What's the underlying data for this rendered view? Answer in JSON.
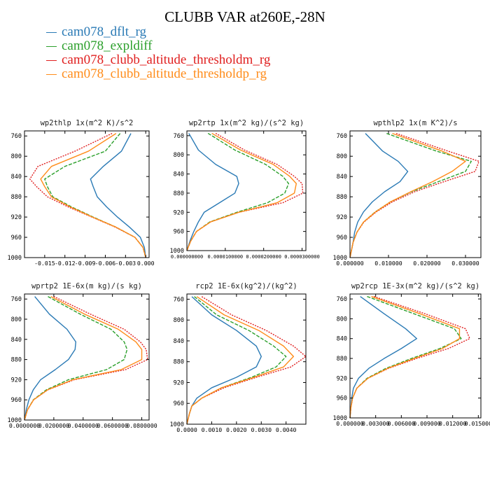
{
  "figure": {
    "title": "CLUBB VAR at260E,-28N"
  },
  "legend": {
    "items": [
      {
        "label": "cam078_dflt_rg",
        "color": "#2a7ab5",
        "dash": "solid"
      },
      {
        "label": "cam078_expldiff",
        "color": "#2ca02c",
        "dash": "dashed"
      },
      {
        "label": "cam078_clubb_altitude_thresholdm_rg",
        "color": "#e02020",
        "dash": "dotted"
      },
      {
        "label": "cam078_clubb_altitude_thresholdp_rg",
        "color": "#ff8c1a",
        "dash": "solid"
      }
    ]
  },
  "chart_data": [
    {
      "type": "line",
      "title": "wp2thlp  1x(m^2 K)/s^2",
      "y_axis": "pressure",
      "y_inverted": true,
      "ylim": [
        750,
        1000
      ],
      "yticks": [
        760,
        800,
        840,
        880,
        920,
        960,
        1000
      ],
      "xlim": [
        -0.018,
        0.0005
      ],
      "xticks": [
        -0.015,
        -0.012,
        -0.009,
        -0.006,
        -0.003,
        0.0
      ],
      "xtick_labels": [
        "-0.015",
        "-0.012",
        "-0.009",
        "-0.006",
        "-0.003",
        "0.000"
      ],
      "y": [
        755,
        790,
        820,
        845,
        860,
        880,
        900,
        920,
        940,
        960,
        980,
        1000
      ],
      "series": [
        {
          "name": "cam078_dflt_rg",
          "x": [
            -0.0022,
            -0.0036,
            -0.0063,
            -0.0082,
            -0.0078,
            -0.0072,
            -0.0058,
            -0.0042,
            -0.0024,
            -0.0008,
            -0.0002,
            0.0
          ]
        },
        {
          "name": "cam078_expldiff",
          "x": [
            -0.0038,
            -0.006,
            -0.012,
            -0.015,
            -0.0146,
            -0.0138,
            -0.011,
            -0.0078,
            -0.0044,
            -0.0016,
            -0.0004,
            0.0
          ]
        },
        {
          "name": "cam078_clubb_altitude_thresholdm_rg",
          "x": [
            -0.005,
            -0.0105,
            -0.016,
            -0.0172,
            -0.0162,
            -0.0146,
            -0.0115,
            -0.008,
            -0.0045,
            -0.0016,
            -0.0004,
            0.0
          ]
        },
        {
          "name": "cam078_clubb_altitude_thresholdp_rg",
          "x": [
            -0.0044,
            -0.0085,
            -0.014,
            -0.0156,
            -0.015,
            -0.014,
            -0.0112,
            -0.0079,
            -0.0044,
            -0.0016,
            -0.0004,
            0.0
          ]
        }
      ]
    },
    {
      "type": "line",
      "title": "wp2rtp  1x(m^2 kg)/(s^2 kg)",
      "y_axis": "pressure",
      "y_inverted": true,
      "ylim": [
        750,
        1000
      ],
      "yticks": [
        760,
        800,
        840,
        880,
        920,
        960,
        1000
      ],
      "xlim": [
        0,
        3.1e-05
      ],
      "xticks": [
        0,
        1e-05,
        2e-05,
        3e-05
      ],
      "xtick_labels": [
        "0.000000000",
        "0.0000100000",
        "0.0000200000",
        "0.0000300000"
      ],
      "y": [
        755,
        790,
        820,
        845,
        860,
        880,
        900,
        920,
        940,
        960,
        980,
        1000
      ],
      "series": [
        {
          "name": "cam078_dflt_rg",
          "x": [
            5e-07,
            3e-06,
            7.5e-06,
            1.3e-05,
            1.35e-05,
            1.25e-05,
            8.5e-06,
            4.5e-06,
            3e-06,
            1.8e-06,
            8e-07,
            0.0
          ]
        },
        {
          "name": "cam078_expldiff",
          "x": [
            5.5e-06,
            1.25e-05,
            2.05e-05,
            2.5e-05,
            2.65e-05,
            2.55e-05,
            2.1e-05,
            1.3e-05,
            6e-06,
            2.5e-06,
            1e-06,
            0.0
          ]
        },
        {
          "name": "cam078_clubb_altitude_thresholdm_rg",
          "x": [
            7.5e-06,
            1.5e-05,
            2.35e-05,
            2.8e-05,
            3e-05,
            3.02e-05,
            2.5e-05,
            1.35e-05,
            6.2e-06,
            2.5e-06,
            1e-06,
            0.0
          ]
        },
        {
          "name": "cam078_clubb_altitude_thresholdp_rg",
          "x": [
            6.5e-06,
            1.4e-05,
            2.25e-05,
            2.68e-05,
            2.85e-05,
            2.8e-05,
            2.35e-05,
            1.35e-05,
            6.2e-06,
            2.5e-06,
            1e-06,
            0.0
          ]
        }
      ]
    },
    {
      "type": "line",
      "title": "wpthlp2  1x(m K^2)/s",
      "y_axis": "pressure",
      "y_inverted": true,
      "ylim": [
        750,
        1000
      ],
      "yticks": [
        760,
        800,
        840,
        880,
        920,
        960,
        1000
      ],
      "xlim": [
        0,
        0.034
      ],
      "xticks": [
        0,
        0.01,
        0.02,
        0.03
      ],
      "xtick_labels": [
        "0.000000",
        "0.010000",
        "0.020000",
        "0.030000"
      ],
      "y": [
        755,
        790,
        810,
        830,
        850,
        870,
        890,
        910,
        930,
        950,
        970,
        1000
      ],
      "series": [
        {
          "name": "cam078_dflt_rg",
          "x": [
            0.004,
            0.0085,
            0.0125,
            0.015,
            0.013,
            0.009,
            0.0058,
            0.0035,
            0.002,
            0.0012,
            0.0008,
            0.0
          ]
        },
        {
          "name": "cam078_expldiff",
          "x": [
            0.0095,
            0.0225,
            0.0315,
            0.03,
            0.023,
            0.016,
            0.0105,
            0.0065,
            0.0035,
            0.0018,
            0.0008,
            0.0
          ]
        },
        {
          "name": "cam078_clubb_altitude_thresholdm_rg",
          "x": [
            0.012,
            0.0255,
            0.0335,
            0.0325,
            0.0245,
            0.0168,
            0.011,
            0.0068,
            0.0036,
            0.0018,
            0.0008,
            0.0
          ]
        },
        {
          "name": "cam078_clubb_altitude_thresholdp_rg",
          "x": [
            0.011,
            0.024,
            0.03,
            0.0265,
            0.0215,
            0.0158,
            0.0105,
            0.0066,
            0.0035,
            0.0018,
            0.0008,
            0.0
          ]
        }
      ]
    },
    {
      "type": "line",
      "title": "wprtp2  1E-6x(m kg)/(s kg)",
      "y_axis": "pressure",
      "y_inverted": true,
      "ylim": [
        750,
        1000
      ],
      "yticks": [
        760,
        800,
        840,
        880,
        920,
        960,
        1000
      ],
      "xlim": [
        0,
        0.085
      ],
      "xticks": [
        0,
        0.02,
        0.04,
        0.06,
        0.08
      ],
      "xtick_labels": [
        "0.0000000",
        "0.0200000",
        "0.0400000",
        "0.0600000",
        "0.0800000"
      ],
      "y": [
        755,
        790,
        820,
        845,
        860,
        880,
        900,
        920,
        940,
        960,
        980,
        1000
      ],
      "series": [
        {
          "name": "cam078_dflt_rg",
          "x": [
            0.007,
            0.017,
            0.029,
            0.035,
            0.0345,
            0.03,
            0.021,
            0.011,
            0.006,
            0.003,
            0.0012,
            0.0
          ]
        },
        {
          "name": "cam078_expldiff",
          "x": [
            0.016,
            0.038,
            0.059,
            0.068,
            0.07,
            0.068,
            0.056,
            0.03,
            0.015,
            0.006,
            0.002,
            0.0
          ]
        },
        {
          "name": "cam078_clubb_altitude_thresholdm_rg",
          "x": [
            0.02,
            0.045,
            0.068,
            0.079,
            0.083,
            0.084,
            0.069,
            0.034,
            0.016,
            0.0062,
            0.002,
            0.0
          ]
        },
        {
          "name": "cam078_clubb_altitude_thresholdp_rg",
          "x": [
            0.018,
            0.041,
            0.064,
            0.076,
            0.08,
            0.08,
            0.066,
            0.033,
            0.0158,
            0.0062,
            0.002,
            0.0
          ]
        }
      ]
    },
    {
      "type": "line",
      "title": "rcp2  1E-6x(kg^2)/(kg^2)",
      "y_axis": "pressure",
      "y_inverted": true,
      "ylim": [
        750,
        1000
      ],
      "yticks": [
        760,
        800,
        840,
        880,
        920,
        960,
        1000
      ],
      "xlim": [
        0,
        0.0048
      ],
      "xticks": [
        0,
        0.001,
        0.002,
        0.003,
        0.004
      ],
      "xtick_labels": [
        "0.0000",
        "0.0010",
        "0.0020",
        "0.0030",
        "0.0040"
      ],
      "y": [
        755,
        790,
        820,
        850,
        870,
        890,
        910,
        930,
        950,
        965,
        980,
        1000
      ],
      "series": [
        {
          "name": "cam078_dflt_rg",
          "x": [
            0.0002,
            0.001,
            0.002,
            0.0028,
            0.003,
            0.0028,
            0.002,
            0.001,
            0.0004,
            0.0002,
            0.0001,
            0.0
          ]
        },
        {
          "name": "cam078_expldiff",
          "x": [
            0.0003,
            0.0012,
            0.0025,
            0.0035,
            0.004,
            0.0036,
            0.0026,
            0.0014,
            0.0006,
            0.0002,
            0.0001,
            0.0
          ]
        },
        {
          "name": "cam078_clubb_altitude_thresholdm_rg",
          "x": [
            0.0006,
            0.0018,
            0.0032,
            0.0043,
            0.0048,
            0.0042,
            0.0028,
            0.0015,
            0.0006,
            0.0002,
            0.0001,
            0.0
          ]
        },
        {
          "name": "cam078_clubb_altitude_thresholdp_rg",
          "x": [
            0.0004,
            0.0015,
            0.0029,
            0.0039,
            0.0043,
            0.0039,
            0.0027,
            0.0014,
            0.0006,
            0.0002,
            0.0001,
            0.0
          ]
        }
      ]
    },
    {
      "type": "line",
      "title": "wp2rcp  1E-3x(m^2 kg)/(s^2 kg)",
      "y_axis": "pressure",
      "y_inverted": true,
      "ylim": [
        750,
        1000
      ],
      "yticks": [
        760,
        800,
        840,
        880,
        920,
        960,
        1000
      ],
      "xlim": [
        0,
        0.0153
      ],
      "xticks": [
        0,
        0.003,
        0.006,
        0.009,
        0.012,
        0.015
      ],
      "xtick_labels": [
        "0.000000",
        "0.003000",
        "0.006000",
        "0.009000",
        "0.012000",
        "0.015000"
      ],
      "y": [
        755,
        790,
        820,
        840,
        860,
        880,
        900,
        920,
        940,
        960,
        980,
        1000
      ],
      "series": [
        {
          "name": "cam078_dflt_rg",
          "x": [
            0.0012,
            0.004,
            0.0065,
            0.0078,
            0.006,
            0.004,
            0.0022,
            0.001,
            0.0004,
            0.0002,
            0.0001,
            0.0
          ]
        },
        {
          "name": "cam078_expldiff",
          "x": [
            0.002,
            0.0075,
            0.0122,
            0.013,
            0.0105,
            0.0072,
            0.0042,
            0.002,
            0.0008,
            0.0003,
            0.0001,
            0.0
          ]
        },
        {
          "name": "cam078_clubb_altitude_thresholdm_rg",
          "x": [
            0.0028,
            0.0088,
            0.0135,
            0.014,
            0.0115,
            0.0078,
            0.0045,
            0.0021,
            0.0008,
            0.0003,
            0.0001,
            0.0
          ]
        },
        {
          "name": "cam078_clubb_altitude_thresholdp_rg",
          "x": [
            0.0025,
            0.0082,
            0.0128,
            0.0128,
            0.0108,
            0.0075,
            0.0044,
            0.0021,
            0.0008,
            0.0003,
            0.0001,
            0.0
          ]
        }
      ]
    }
  ]
}
